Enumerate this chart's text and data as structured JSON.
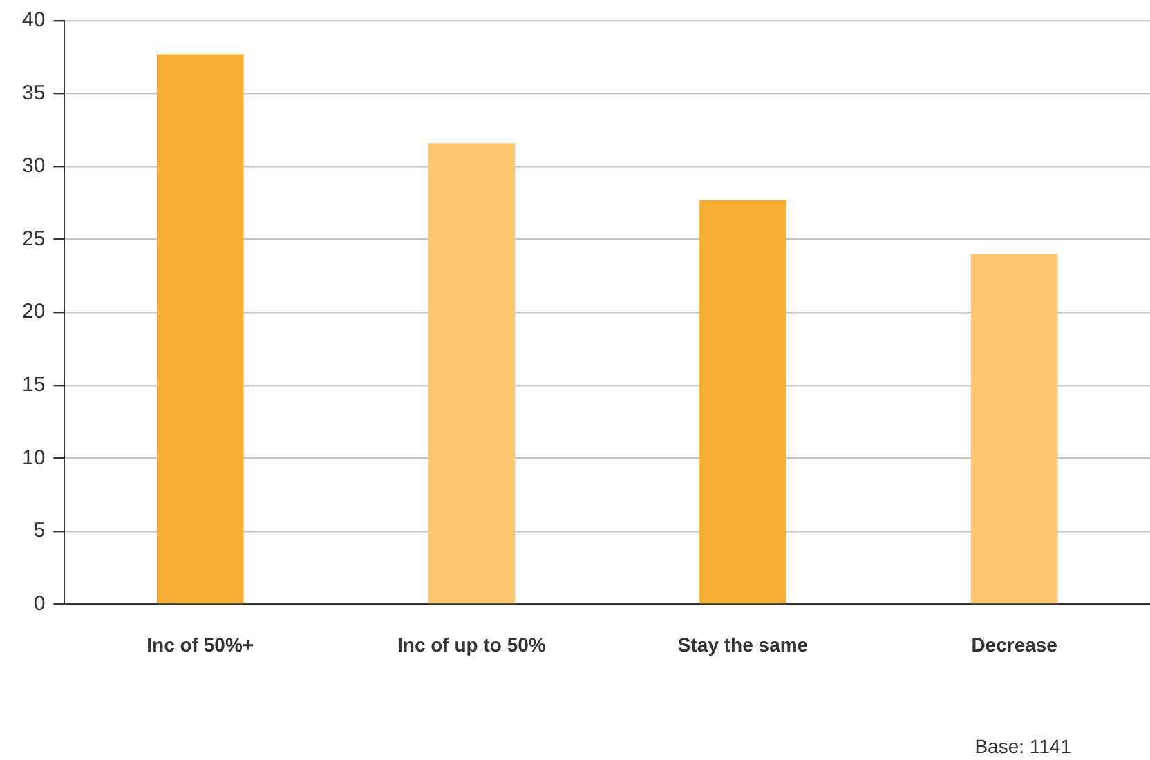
{
  "chart_data": {
    "type": "bar",
    "categories": [
      "Inc of 50%+",
      "Inc of up to 50%",
      "Stay the same",
      "Decrease"
    ],
    "values": [
      37.7,
      31.6,
      27.7,
      24.0
    ],
    "colors": [
      "#f9af33",
      "#fcc673",
      "#f9af33",
      "#fcc673"
    ],
    "ylim": [
      0,
      40
    ],
    "yticks": [
      0,
      5,
      10,
      15,
      20,
      25,
      30,
      35,
      40
    ],
    "grid": "y",
    "legend": false,
    "annotations": [
      "Base: 1141"
    ]
  }
}
